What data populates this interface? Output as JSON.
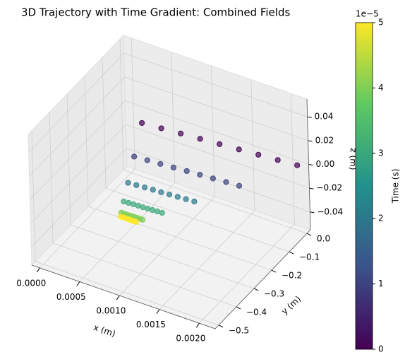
{
  "chart_data": {
    "type": "scatter3d",
    "title": "3D Trajectory with Time Gradient: Combined Fields",
    "xlabel": "x (m)",
    "ylabel": "y (m)",
    "zlabel": "z (m)",
    "xlim": [
      -0.0001,
      0.0022
    ],
    "ylim": [
      -0.52,
      0.02
    ],
    "zlim": [
      -0.055,
      0.055
    ],
    "xticks": [
      {
        "value": 0,
        "label": "0.0000"
      },
      {
        "value": 0.0005,
        "label": "0.0005"
      },
      {
        "value": 0.001,
        "label": "0.0010"
      },
      {
        "value": 0.0015,
        "label": "0.0015"
      },
      {
        "value": 0.002,
        "label": "0.0020"
      }
    ],
    "yticks": [
      {
        "value": 0,
        "label": "0.0"
      },
      {
        "value": -0.1,
        "label": "−0.1"
      },
      {
        "value": -0.2,
        "label": "−0.2"
      },
      {
        "value": -0.3,
        "label": "−0.3"
      },
      {
        "value": -0.4,
        "label": "−0.4"
      },
      {
        "value": -0.5,
        "label": "−0.5"
      }
    ],
    "zticks": [
      {
        "value": -0.04,
        "label": "−0.04"
      },
      {
        "value": -0.02,
        "label": "−0.02"
      },
      {
        "value": 0,
        "label": "0.00"
      },
      {
        "value": 0.02,
        "label": "0.02"
      },
      {
        "value": 0.04,
        "label": "0.04"
      }
    ],
    "grid": true,
    "colormap": "viridis",
    "colorbar": {
      "label": "Time (s)",
      "offset_text": "1e−5",
      "lim": [
        0,
        5e-05
      ],
      "ticks": [
        0,
        {
          "value": 1e-05,
          "label": "1"
        },
        {
          "value": 2e-05,
          "label": "2"
        },
        {
          "value": 3e-05,
          "label": "3"
        },
        {
          "value": 4e-05,
          "label": "4"
        },
        {
          "value": 5e-05,
          "label": "5"
        }
      ]
    },
    "x": [
      0.0007,
      0.000772,
      0.000828,
      0.000868,
      0.000892,
      0.0009,
      0.000875,
      0.000893,
      0.000907,
      0.000917,
      0.000923,
      0.000925,
      0.00105,
      0.001014,
      0.000986,
      0.000966,
      0.000954,
      0.00095,
      0.001225,
      0.001135,
      0.001065,
      0.001015,
      0.000985,
      0.000975,
      0.0014,
      0.001256,
      0.001144,
      0.001064,
      0.001016,
      0.001,
      0.001575,
      0.001377,
      0.001223,
      0.001113,
      0.001047,
      0.001025,
      0.00175,
      0.001498,
      0.001302,
      0.001162,
      0.001078,
      0.00105,
      0.001925,
      0.001619,
      0.001381,
      0.001211,
      0.001109,
      0.001075,
      0.0021,
      0.00174,
      0.00146,
      0.00126,
      0.00114,
      0.0011
    ],
    "y": [
      -0.24,
      -0.319,
      -0.381,
      -0.425,
      -0.451,
      -0.46,
      -0.21,
      -0.3,
      -0.37,
      -0.42,
      -0.45,
      -0.46,
      -0.18,
      -0.281,
      -0.359,
      -0.415,
      -0.449,
      -0.46,
      -0.15,
      -0.262,
      -0.348,
      -0.41,
      -0.448,
      -0.46,
      -0.12,
      -0.242,
      -0.338,
      -0.406,
      -0.446,
      -0.46,
      -0.09,
      -0.223,
      -0.327,
      -0.401,
      -0.445,
      -0.46,
      -0.06,
      -0.204,
      -0.316,
      -0.396,
      -0.444,
      -0.46,
      -0.03,
      -0.185,
      -0.305,
      -0.391,
      -0.443,
      -0.46,
      0,
      -0.166,
      -0.294,
      -0.386,
      -0.442,
      -0.46
    ],
    "z": [
      0.04,
      0.0256,
      0.0144,
      0.0064,
      0.0016,
      0,
      0.035,
      0.0224,
      0.0126,
      0.0056,
      0.0014,
      0,
      0.03,
      0.0192,
      0.0108,
      0.0048,
      0.0012,
      0,
      0.025,
      0.016,
      0.009,
      0.004,
      0.001,
      0,
      0.02,
      0.0128,
      0.0072,
      0.0032,
      0.0008,
      0,
      0.015,
      0.0096,
      0.0054,
      0.0024,
      0.0006,
      0,
      0.01,
      0.0064,
      0.0036,
      0.0016,
      0.0004,
      0,
      0.005,
      0.0032,
      0.0018,
      0.0008,
      0.0002,
      0,
      0,
      0,
      0,
      0,
      0,
      0
    ],
    "t": [
      0,
      1e-05,
      2e-05,
      3e-05,
      4e-05,
      5e-05,
      0,
      1e-05,
      2e-05,
      3e-05,
      4e-05,
      5e-05,
      0,
      1e-05,
      2e-05,
      3e-05,
      4e-05,
      5e-05,
      0,
      1e-05,
      2e-05,
      3e-05,
      4e-05,
      5e-05,
      0,
      1e-05,
      2e-05,
      3e-05,
      4e-05,
      5e-05,
      0,
      1e-05,
      2e-05,
      3e-05,
      4e-05,
      5e-05,
      0,
      1e-05,
      2e-05,
      3e-05,
      4e-05,
      5e-05,
      0,
      1e-05,
      2e-05,
      3e-05,
      4e-05,
      5e-05,
      0,
      1e-05,
      2e-05,
      3e-05,
      4e-05,
      5e-05
    ]
  }
}
